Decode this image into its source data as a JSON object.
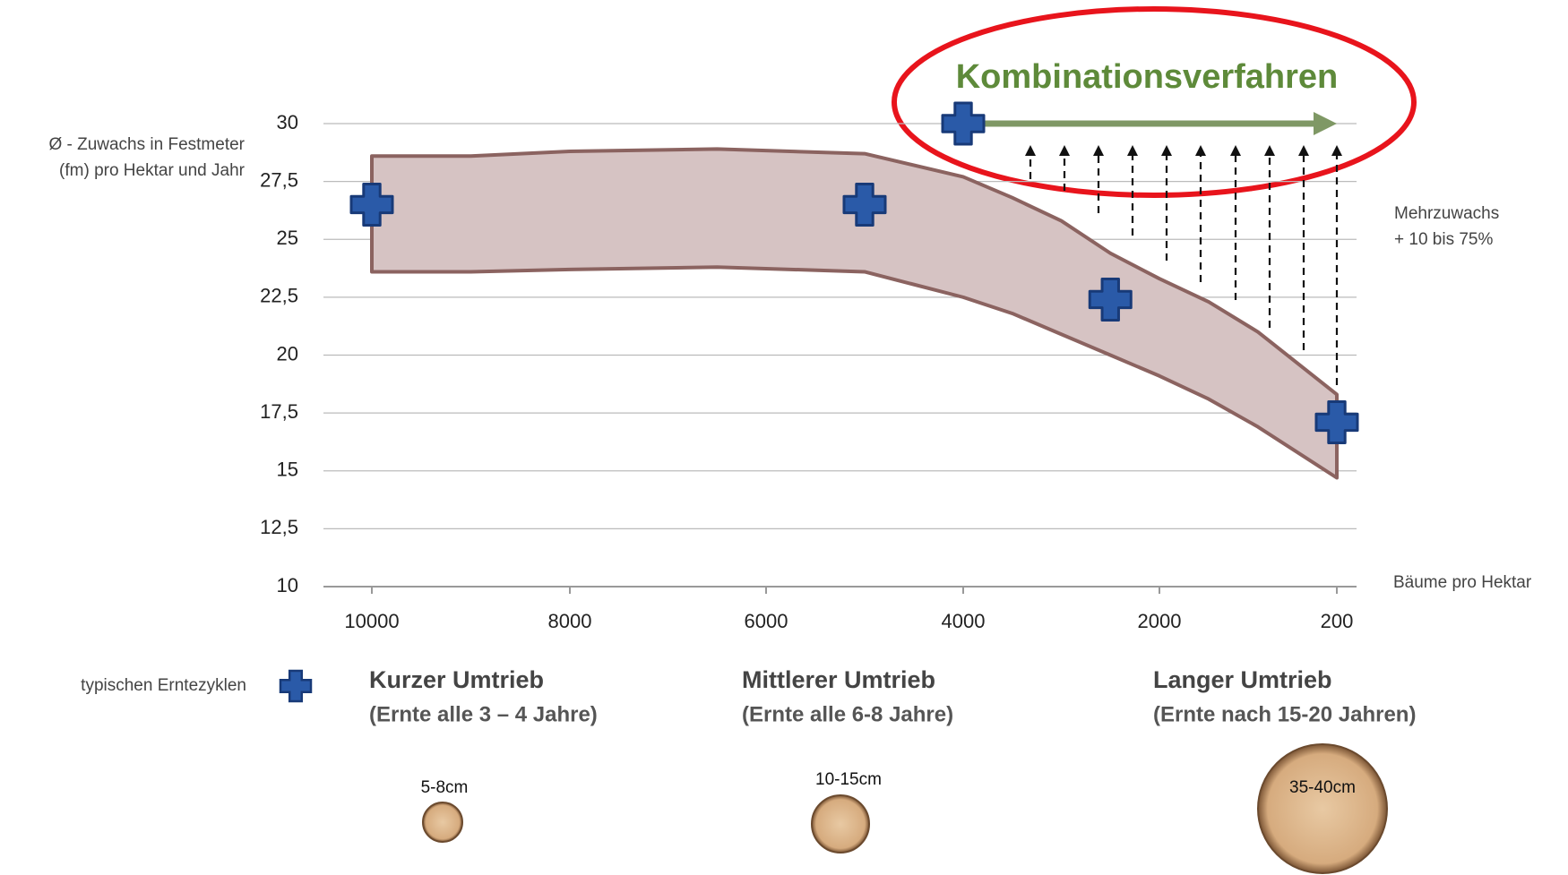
{
  "chart_data": {
    "type": "band-scatter",
    "title": "Kombinationsverfahren",
    "ylabel": [
      "Ø - Zuwachs in Festmeter",
      "(fm) pro Hektar und Jahr"
    ],
    "xlabel": "Bäume pro Hektar",
    "annotation": [
      "Mehrzuwachs",
      "+ 10 bis 75%"
    ],
    "ylim": [
      10,
      30
    ],
    "yticks": [
      10,
      {
        "value": 12.5,
        "label": "12,5"
      },
      15,
      {
        "value": 17.5,
        "label": "17,5"
      },
      20,
      {
        "value": 22.5,
        "label": "22,5"
      },
      25,
      {
        "value": 27.5,
        "label": "27,5"
      },
      30
    ],
    "xlim": [
      10000,
      200
    ],
    "xticks": [
      10000,
      8000,
      6000,
      4000,
      2000,
      200
    ],
    "grid": true,
    "band": {
      "color": "#d6c3c3",
      "edge": "#8b6360",
      "x": [
        10000,
        9000,
        8000,
        6500,
        5000,
        4000,
        3500,
        3000,
        2500,
        2000,
        1500,
        1000,
        200
      ],
      "upper": [
        28.6,
        28.6,
        28.8,
        28.9,
        28.7,
        27.7,
        26.8,
        25.8,
        24.4,
        23.3,
        22.3,
        21.0,
        18.3
      ],
      "lower": [
        23.6,
        23.6,
        23.7,
        23.8,
        23.6,
        22.5,
        21.8,
        20.9,
        20.0,
        19.1,
        18.1,
        16.9,
        14.7
      ]
    },
    "series": [
      {
        "name": "typischen Erntezyklen",
        "color": "#2a5aa8",
        "x": [
          10000,
          5000,
          2500,
          200
        ],
        "values": [
          26.5,
          26.5,
          22.4,
          17.1
        ]
      },
      {
        "name": "Kombinationsverfahren",
        "color": "#2a5aa8",
        "x": [
          4000
        ],
        "values": [
          30
        ]
      }
    ],
    "cycles": [
      {
        "name": "Kurzer Umtrieb",
        "desc": "(Ernte alle 3 – 4 Jahre)",
        "size": "5-8cm"
      },
      {
        "name": "Mittlerer Umtrieb",
        "desc": "(Ernte alle 6-8 Jahre)",
        "size": "10-15cm"
      },
      {
        "name": "Langer Umtrieb",
        "desc": "(Ernte nach 15-20 Jahren)",
        "size": "35-40cm"
      }
    ]
  }
}
